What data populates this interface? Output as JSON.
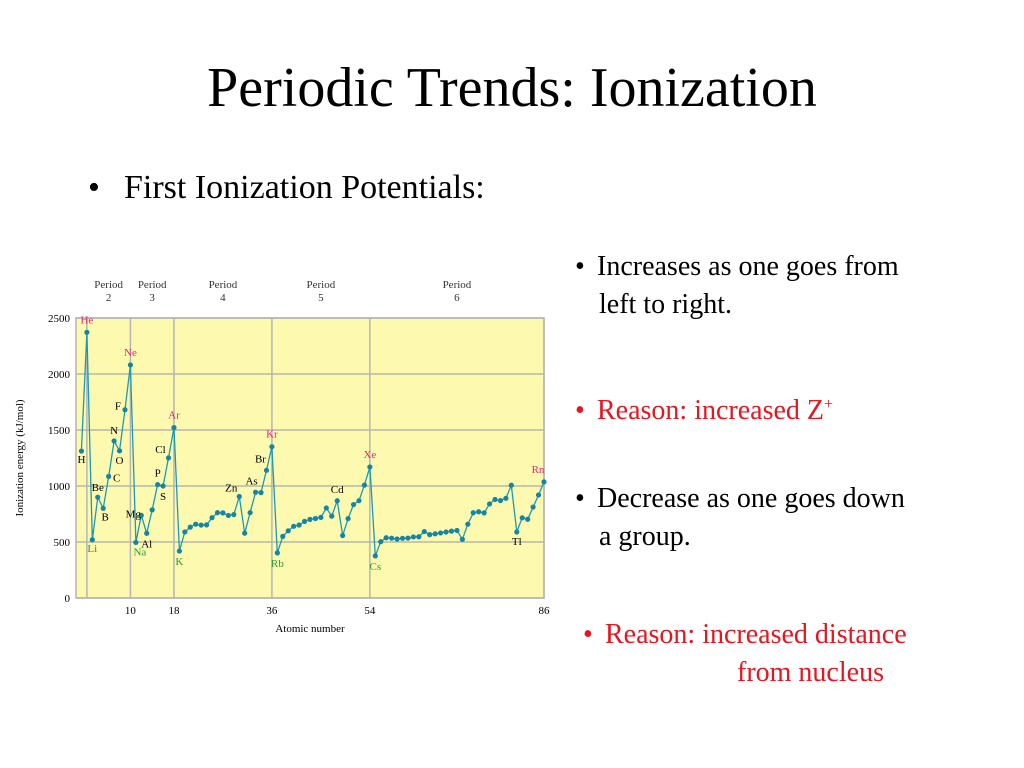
{
  "slide": {
    "title": "Periodic Trends:  Ionization",
    "bullet_main": "First Ionization Potentials:",
    "bullet_char": "•",
    "points": [
      {
        "line1": "Increases as one goes from",
        "line2": "left to right.",
        "color": "#000000"
      },
      {
        "line1": "Reason:  increased Z",
        "sup": "+",
        "color": "#e8141e"
      },
      {
        "line1": "Decrease as one goes down",
        "line2": "a group.",
        "color": "#000000"
      },
      {
        "line1": "Reason:  increased distance",
        "line2": "from nucleus",
        "color": "#e8141e"
      }
    ]
  },
  "chart_data": {
    "type": "line",
    "xlabel": "Atomic number",
    "ylabel": "Ionization energy (kJ/mol)",
    "xlim": [
      0,
      86
    ],
    "ylim": [
      0,
      2500
    ],
    "yticks": [
      0,
      500,
      1000,
      1500,
      2000,
      2500
    ],
    "xticks": [
      10,
      18,
      36,
      54,
      86
    ],
    "period_boundaries": [
      2,
      10,
      18,
      36,
      54,
      86
    ],
    "periods": [
      {
        "label": "Period",
        "num": "2",
        "from": 2,
        "to": 10
      },
      {
        "label": "Period",
        "num": "3",
        "from": 10,
        "to": 18
      },
      {
        "label": "Period",
        "num": "4",
        "from": 18,
        "to": 36
      },
      {
        "label": "Period",
        "num": "5",
        "from": 36,
        "to": 54
      },
      {
        "label": "Period",
        "num": "6",
        "from": 54,
        "to": 86
      }
    ],
    "colors": {
      "background": "#fdfab0",
      "grid": "#b4b4b4",
      "line": "#1a9ab6",
      "point": "#1585a3",
      "noble": "#e0287a",
      "alkali": "#2a9a3a",
      "other": "#000000"
    },
    "x": [
      1,
      2,
      3,
      4,
      5,
      6,
      7,
      8,
      9,
      10,
      11,
      12,
      13,
      14,
      15,
      16,
      17,
      18,
      19,
      20,
      21,
      22,
      23,
      24,
      25,
      26,
      27,
      28,
      29,
      30,
      31,
      32,
      33,
      34,
      35,
      36,
      37,
      38,
      39,
      40,
      41,
      42,
      43,
      44,
      45,
      46,
      47,
      48,
      49,
      50,
      51,
      52,
      53,
      54,
      55,
      56,
      57,
      58,
      59,
      60,
      61,
      62,
      63,
      64,
      65,
      66,
      67,
      68,
      69,
      70,
      71,
      72,
      73,
      74,
      75,
      76,
      77,
      78,
      79,
      80,
      81,
      82,
      83,
      84,
      85,
      86
    ],
    "y": [
      1312,
      2372,
      520,
      900,
      801,
      1086,
      1402,
      1314,
      1681,
      2081,
      496,
      738,
      578,
      787,
      1012,
      1000,
      1251,
      1521,
      419,
      590,
      633,
      659,
      651,
      653,
      717,
      762,
      760,
      737,
      745,
      906,
      579,
      762,
      944,
      941,
      1140,
      1351,
      403,
      550,
      600,
      640,
      652,
      684,
      702,
      710,
      720,
      804,
      731,
      868,
      558,
      709,
      834,
      869,
      1008,
      1170,
      376,
      503,
      538,
      534,
      527,
      533,
      535,
      545,
      547,
      593,
      566,
      573,
      581,
      589,
      597,
      603,
      524,
      659,
      761,
      770,
      760,
      840,
      880,
      870,
      890,
      1007,
      589,
      716,
      703,
      812,
      920,
      1037
    ],
    "element_labels": [
      {
        "z": 1,
        "sym": "H",
        "group": "other",
        "dx": 0,
        "dy": 12
      },
      {
        "z": 2,
        "sym": "He",
        "group": "noble",
        "dx": 0,
        "dy": -9
      },
      {
        "z": 3,
        "sym": "Li",
        "group": "alkali",
        "dx": 0,
        "dy": 12
      },
      {
        "z": 4,
        "sym": "Be",
        "group": "other",
        "dx": 0,
        "dy": -6
      },
      {
        "z": 5,
        "sym": "B",
        "group": "other",
        "dx": 2,
        "dy": 12
      },
      {
        "z": 6,
        "sym": "C",
        "group": "other",
        "dx": 8,
        "dy": 5
      },
      {
        "z": 7,
        "sym": "N",
        "group": "other",
        "dx": 0,
        "dy": -7
      },
      {
        "z": 8,
        "sym": "O",
        "group": "other",
        "dx": 0,
        "dy": 13
      },
      {
        "z": 9,
        "sym": "F",
        "group": "other",
        "dx": -7,
        "dy": 0
      },
      {
        "z": 10,
        "sym": "Ne",
        "group": "noble",
        "dx": 0,
        "dy": -9
      },
      {
        "z": 11,
        "sym": "Na",
        "group": "alkali",
        "dx": 4,
        "dy": 13
      },
      {
        "z": 12,
        "sym": "Mg",
        "group": "other",
        "dx": -8,
        "dy": 2
      },
      {
        "z": 13,
        "sym": "Al",
        "group": "other",
        "dx": 0,
        "dy": 14
      },
      {
        "z": 15,
        "sym": "P",
        "group": "other",
        "dx": 0,
        "dy": -8
      },
      {
        "z": 16,
        "sym": "S",
        "group": "other",
        "dx": 0,
        "dy": 14
      },
      {
        "z": 17,
        "sym": "Cl",
        "group": "other",
        "dx": -8,
        "dy": -5
      },
      {
        "z": 18,
        "sym": "Ar",
        "group": "noble",
        "dx": 0,
        "dy": -9
      },
      {
        "z": 19,
        "sym": "K",
        "group": "alkali",
        "dx": 0,
        "dy": 14
      },
      {
        "z": 30,
        "sym": "Zn",
        "group": "other",
        "dx": -8,
        "dy": -5
      },
      {
        "z": 33,
        "sym": "As",
        "group": "other",
        "dx": -4,
        "dy": -8
      },
      {
        "z": 35,
        "sym": "Br",
        "group": "other",
        "dx": -6,
        "dy": -8
      },
      {
        "z": 36,
        "sym": "Kr",
        "group": "noble",
        "dx": 0,
        "dy": -9
      },
      {
        "z": 37,
        "sym": "Rb",
        "group": "alkali",
        "dx": 0,
        "dy": 14
      },
      {
        "z": 48,
        "sym": "Cd",
        "group": "other",
        "dx": 0,
        "dy": -8
      },
      {
        "z": 54,
        "sym": "Xe",
        "group": "noble",
        "dx": 0,
        "dy": -9
      },
      {
        "z": 55,
        "sym": "Cs",
        "group": "alkali",
        "dx": 0,
        "dy": 14
      },
      {
        "z": 81,
        "sym": "Tl",
        "group": "other",
        "dx": 0,
        "dy": 13
      },
      {
        "z": 86,
        "sym": "Rn",
        "group": "noble",
        "dx": -6,
        "dy": -9
      }
    ]
  }
}
